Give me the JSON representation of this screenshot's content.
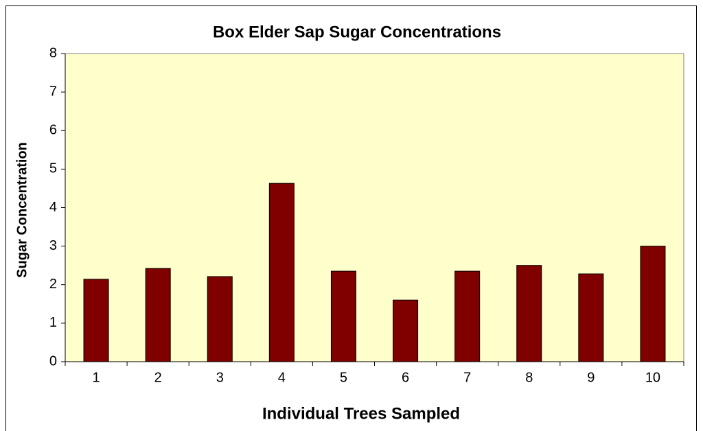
{
  "chart_data": {
    "type": "bar",
    "title": "Box Elder Sap Sugar Concentrations",
    "x_label": "Individual Trees Sampled",
    "y_label": "Sugar Concentration",
    "categories": [
      "1",
      "2",
      "3",
      "4",
      "5",
      "6",
      "7",
      "8",
      "9",
      "10"
    ],
    "values": [
      2.14,
      2.42,
      2.21,
      4.63,
      2.35,
      1.6,
      2.35,
      2.5,
      2.28,
      3.0
    ],
    "color": "#800000",
    "plot_background": "#ffffcc",
    "ylim": [
      0,
      8
    ],
    "yticks": [
      0,
      1,
      2,
      3,
      4,
      5,
      6,
      7,
      8
    ],
    "grid": false
  }
}
